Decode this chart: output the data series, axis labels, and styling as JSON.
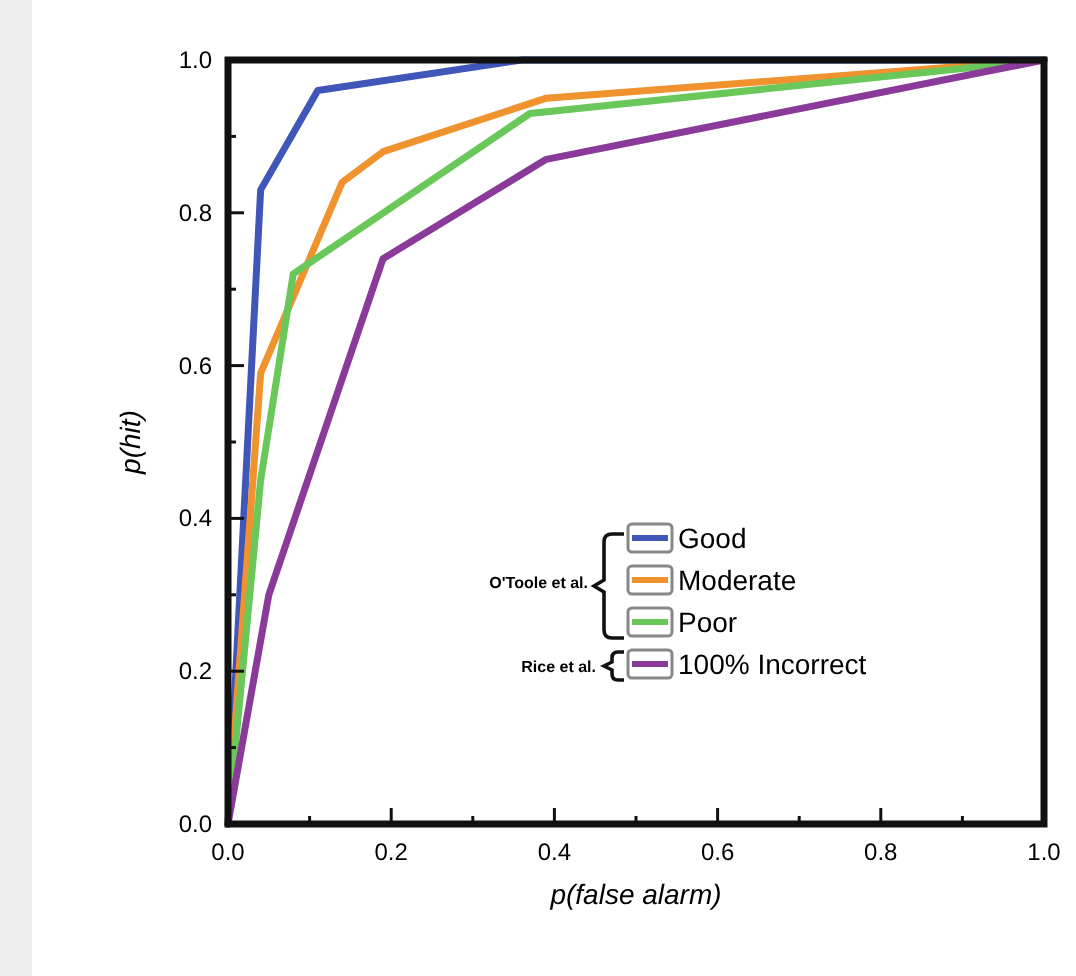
{
  "chart_data": {
    "type": "line",
    "xlabel": "p(false alarm)",
    "ylabel": "p(hit)",
    "xlim": [
      0,
      1
    ],
    "ylim": [
      0,
      1
    ],
    "xticks": [
      {
        "value": 0,
        "label": "0.0"
      },
      {
        "value": 0.1,
        "label": null
      },
      {
        "value": 0.2,
        "label": "0.2"
      },
      {
        "value": 0.3,
        "label": null
      },
      {
        "value": 0.4,
        "label": "0.4"
      },
      {
        "value": 0.5,
        "label": null
      },
      {
        "value": 0.6,
        "label": "0.6"
      },
      {
        "value": 0.7,
        "label": null
      },
      {
        "value": 0.8,
        "label": "0.8"
      },
      {
        "value": 0.9,
        "label": null
      },
      {
        "value": 1,
        "label": "1.0"
      }
    ],
    "yticks": [
      {
        "value": 0,
        "label": "0.0"
      },
      {
        "value": 0.1,
        "label": null
      },
      {
        "value": 0.2,
        "label": "0.2"
      },
      {
        "value": 0.3,
        "label": null
      },
      {
        "value": 0.4,
        "label": "0.4"
      },
      {
        "value": 0.5,
        "label": null
      },
      {
        "value": 0.6,
        "label": "0.6"
      },
      {
        "value": 0.7,
        "label": null
      },
      {
        "value": 0.8,
        "label": "0.8"
      },
      {
        "value": 0.9,
        "label": null
      },
      {
        "value": 1,
        "label": "1.0"
      }
    ],
    "series": [
      {
        "name": "Good",
        "color": "#4056b8",
        "x": [
          0,
          0.04,
          0.11,
          0.36,
          1
        ],
        "values": [
          0,
          0.83,
          0.96,
          1.0,
          1.0
        ]
      },
      {
        "name": "Moderate",
        "color": "#f0922e",
        "x": [
          0,
          0.04,
          0.14,
          0.19,
          0.39,
          1
        ],
        "values": [
          0,
          0.59,
          0.84,
          0.88,
          0.95,
          1.0
        ]
      },
      {
        "name": "Poor",
        "color": "#6ac75a",
        "x": [
          0,
          0.04,
          0.08,
          0.37,
          1
        ],
        "values": [
          0,
          0.45,
          0.72,
          0.93,
          1.0
        ]
      },
      {
        "name": "100% Incorrect",
        "color": "#8a3a98",
        "x": [
          0,
          0.05,
          0.19,
          0.39,
          1
        ],
        "values": [
          0,
          0.3,
          0.74,
          0.87,
          1.0
        ]
      }
    ],
    "legend": "bottom right",
    "grid": false,
    "marker": "none",
    "line_style": "solid",
    "annotations": [
      "O'Toole et al.",
      "Rice et al."
    ]
  }
}
